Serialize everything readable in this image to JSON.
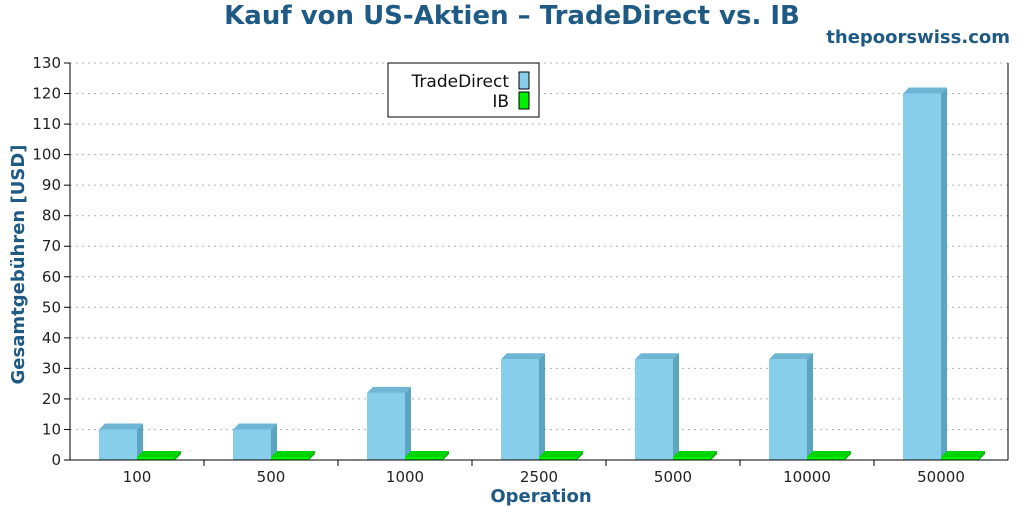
{
  "title": "Kauf von US-Aktien – TradeDirect vs. IB",
  "watermark": "thepoorswiss.com",
  "colors": {
    "TradeDirect": "#87ceeb",
    "TradeDirect_side": "#5ba5c0",
    "TradeDirect_top": "#6fb6d4",
    "IB": "#00f000",
    "IB_side": "#00b800",
    "IB_top": "#00d400",
    "grid": "#b0b0b0",
    "accent": "#1f5a85"
  },
  "chart_data": {
    "type": "bar",
    "categories": [
      "100",
      "500",
      "1000",
      "2500",
      "5000",
      "10000",
      "50000"
    ],
    "series": [
      {
        "name": "TradeDirect",
        "values": [
          10,
          10,
          22,
          33,
          33,
          33,
          120
        ]
      },
      {
        "name": "IB",
        "values": [
          1,
          1,
          1,
          1,
          1,
          1,
          1
        ]
      }
    ],
    "xlabel": "Operation",
    "ylabel": "Gesamtgebühren [USD]",
    "ylim": [
      0,
      130
    ],
    "yticks": [
      0,
      10,
      20,
      30,
      40,
      50,
      60,
      70,
      80,
      90,
      100,
      110,
      120,
      130
    ],
    "grid": true,
    "legend": "top-center"
  }
}
